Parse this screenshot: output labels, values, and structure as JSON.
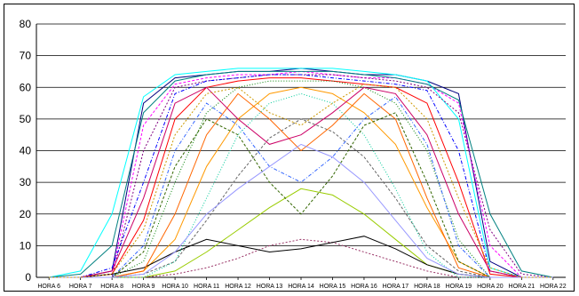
{
  "chart_data": {
    "type": "line",
    "categories": [
      "HORA 6",
      "HORA 7",
      "HORA 8",
      "HORA 9",
      "HORA 10",
      "HORA 11",
      "HORA 12",
      "HORA 13",
      "HORA 14",
      "HORA 15",
      "HORA 16",
      "HORA 17",
      "HORA 18",
      "HORA 19",
      "HORA 20",
      "HORA 21",
      "HORA 22"
    ],
    "ylim": [
      0,
      80
    ],
    "yticks": [
      0,
      10,
      20,
      30,
      40,
      50,
      60,
      70,
      80
    ],
    "grid": "horizontal",
    "legend": "none",
    "series_colors": [
      "#000080",
      "#ff00ff",
      "#00ffff",
      "#800080",
      "#008080",
      "#0000ff",
      "#ff0000",
      "#008000",
      "#ff9900",
      "#666666",
      "#99cc00",
      "#993366",
      "#000000",
      "#3366ff",
      "#ff6600",
      "#00cc99",
      "#cc0066",
      "#336600",
      "#9999ff",
      "#cc9900"
    ],
    "series": [
      {
        "values": [
          0,
          0,
          2,
          55,
          63,
          64,
          65,
          65,
          66,
          65,
          64,
          64,
          62,
          58,
          5,
          0,
          0
        ]
      },
      {
        "values": [
          0,
          0,
          1,
          48,
          61,
          63,
          64,
          64,
          65,
          64,
          63,
          63,
          61,
          55,
          10,
          0,
          0
        ]
      },
      {
        "values": [
          0,
          2,
          20,
          57,
          64,
          65,
          66,
          66,
          66,
          66,
          65,
          64,
          62,
          50,
          3,
          0,
          0
        ]
      },
      {
        "values": [
          0,
          0,
          0,
          40,
          60,
          62,
          63,
          64,
          64,
          64,
          63,
          62,
          60,
          52,
          15,
          1,
          0
        ]
      },
      {
        "values": [
          0,
          1,
          10,
          52,
          62,
          64,
          65,
          65,
          65,
          65,
          64,
          63,
          61,
          56,
          20,
          2,
          0
        ]
      },
      {
        "values": [
          0,
          0,
          3,
          30,
          58,
          62,
          63,
          64,
          64,
          63,
          62,
          61,
          59,
          40,
          2,
          0,
          0
        ]
      },
      {
        "values": [
          0,
          0,
          1,
          18,
          50,
          60,
          62,
          63,
          63,
          62,
          61,
          60,
          55,
          30,
          1,
          0,
          0
        ]
      },
      {
        "values": [
          0,
          0,
          0,
          5,
          30,
          52,
          60,
          62,
          62,
          62,
          60,
          55,
          40,
          12,
          0,
          0,
          0
        ]
      },
      {
        "values": [
          0,
          0,
          0,
          2,
          12,
          35,
          50,
          58,
          60,
          58,
          52,
          42,
          22,
          5,
          0,
          0,
          0
        ]
      },
      {
        "values": [
          0,
          0,
          0,
          1,
          5,
          18,
          32,
          44,
          50,
          46,
          38,
          25,
          10,
          2,
          0,
          0,
          0
        ]
      },
      {
        "values": [
          0,
          0,
          0,
          0,
          2,
          8,
          15,
          22,
          28,
          26,
          20,
          12,
          4,
          1,
          0,
          0,
          0
        ]
      },
      {
        "values": [
          0,
          0,
          0,
          0,
          1,
          3,
          6,
          10,
          12,
          11,
          8,
          5,
          2,
          0,
          0,
          0,
          0
        ]
      },
      {
        "values": [
          0,
          0,
          1,
          3,
          8,
          12,
          10,
          8,
          9,
          11,
          13,
          9,
          4,
          1,
          0,
          0,
          0
        ]
      },
      {
        "values": [
          0,
          0,
          0,
          10,
          40,
          55,
          48,
          35,
          30,
          38,
          50,
          57,
          42,
          10,
          0,
          0,
          0
        ]
      },
      {
        "values": [
          0,
          0,
          0,
          2,
          20,
          45,
          58,
          50,
          40,
          48,
          58,
          50,
          25,
          3,
          0,
          0,
          0
        ]
      },
      {
        "values": [
          0,
          0,
          0,
          0,
          5,
          25,
          45,
          55,
          58,
          55,
          45,
          28,
          8,
          0,
          0,
          0,
          0
        ]
      },
      {
        "values": [
          0,
          0,
          2,
          25,
          55,
          60,
          50,
          42,
          45,
          52,
          60,
          58,
          45,
          20,
          2,
          0,
          0
        ]
      },
      {
        "values": [
          0,
          0,
          0,
          8,
          35,
          50,
          45,
          30,
          20,
          32,
          48,
          52,
          30,
          5,
          0,
          0,
          0
        ]
      },
      {
        "values": [
          0,
          0,
          0,
          1,
          8,
          20,
          28,
          35,
          42,
          38,
          30,
          18,
          6,
          1,
          0,
          0,
          0
        ]
      },
      {
        "values": [
          0,
          0,
          1,
          15,
          45,
          58,
          60,
          52,
          48,
          55,
          61,
          60,
          50,
          25,
          3,
          0,
          0
        ]
      }
    ]
  }
}
